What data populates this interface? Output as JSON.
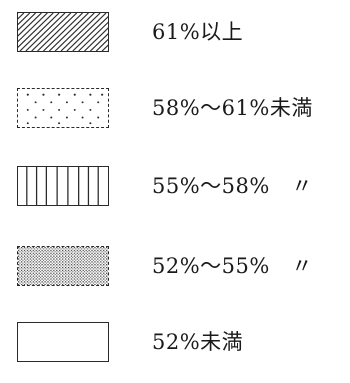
{
  "legend": {
    "items": [
      {
        "label": "61%以上",
        "pattern": "diagonal-hatch"
      },
      {
        "label": "58%～61%未満",
        "pattern": "sparse-dots"
      },
      {
        "label": "55%～58%　〃",
        "pattern": "vertical-lines"
      },
      {
        "label": "52%～55%　〃",
        "pattern": "dense-dots"
      },
      {
        "label": "52%未満",
        "pattern": "blank"
      }
    ],
    "colors": {
      "ink": "#1a1a1a",
      "background": "#ffffff"
    }
  }
}
